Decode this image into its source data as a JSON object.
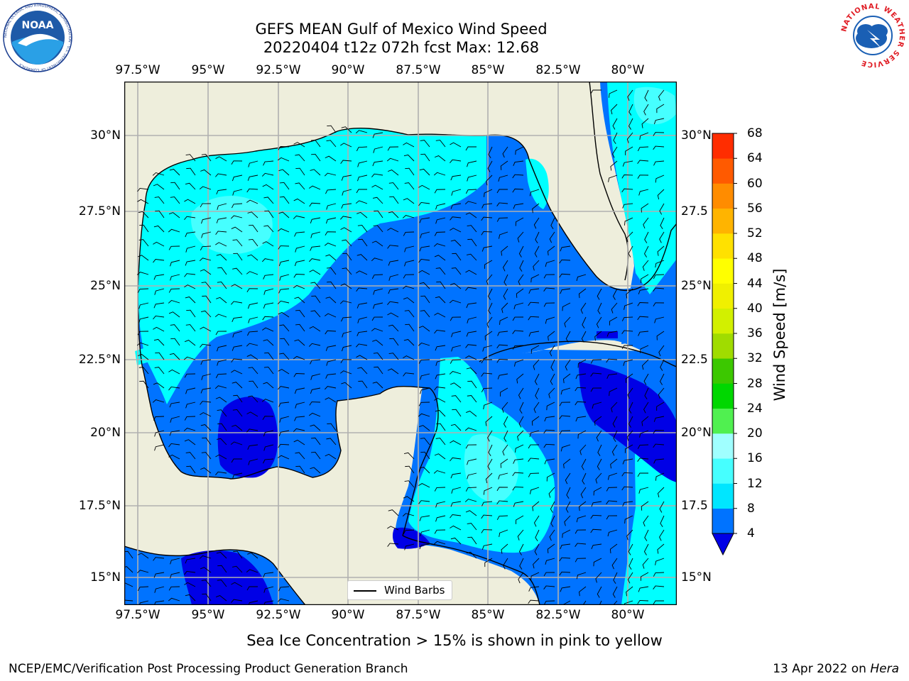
{
  "title": {
    "line1": "GEFS MEAN Gulf of Mexico Wind Speed",
    "line2": "20220404 t12z 072h fcst   Max: 12.68"
  },
  "lon_labels": [
    "97.5°W",
    "95°W",
    "92.5°W",
    "90°W",
    "87.5°W",
    "85°W",
    "82.5°W",
    "80°W"
  ],
  "lat_labels_left": [
    "30°N",
    "27.5°N",
    "25°N",
    "22.5°N",
    "20°N",
    "17.5°N",
    "15°N"
  ],
  "lat_labels_right": [
    "30°N",
    "27.5",
    "25°N",
    "22.5",
    "20°N",
    "17.5",
    "15°N"
  ],
  "legend": {
    "label": "Wind Barbs"
  },
  "colorbar": {
    "label": "Wind Speed [m/s]",
    "ticks": [
      "4",
      "8",
      "12",
      "16",
      "20",
      "24",
      "28",
      "32",
      "36",
      "40",
      "44",
      "48",
      "52",
      "56",
      "60",
      "64",
      "68"
    ],
    "colors": [
      "#0073ff",
      "#00e6ff",
      "#46ffff",
      "#a0ffff",
      "#50f050",
      "#00d700",
      "#3cc800",
      "#a0dc00",
      "#d2f000",
      "#f0f000",
      "#ffff00",
      "#ffe100",
      "#ffb400",
      "#ff8c00",
      "#ff5a00",
      "#ff2d00"
    ],
    "under_color": "#0000e6"
  },
  "map_colors": {
    "land": "#eeeedc",
    "ocean_4_8": "#0073ff",
    "ocean_8_12": "#00ffff",
    "ocean_12_16": "#46ffff",
    "ocean_lt_4": "#0000e6"
  },
  "caption": "Sea Ice Concentration > 15% is shown in pink to yellow",
  "credit_left": "NCEP/EMC/Verification Post Processing Product Generation Branch",
  "credit_right_date": "13 Apr 2022 on ",
  "credit_right_host": "Hera",
  "logos": {
    "noaa_text": "NOAA",
    "noaa_ring": "NATIONAL OCEANIC AND ATMOSPHERIC ADMINISTRATION · U.S. DEPARTMENT OF COMMERCE",
    "nws_ring": "NATIONAL WEATHER SERVICE"
  }
}
